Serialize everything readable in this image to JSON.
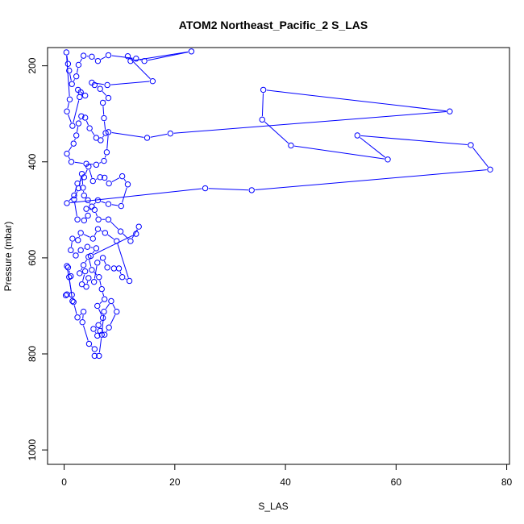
{
  "chart_data": {
    "type": "line",
    "title": "ATOM2 Northeast_Pacific_2 S_LAS",
    "xlabel": "S_LAS",
    "ylabel": "Pressure (mbar)",
    "xlim": [
      -3,
      80.5
    ],
    "ylim": [
      1030,
      162
    ],
    "y_inverted": true,
    "x_ticks": [
      0,
      20,
      40,
      60,
      80
    ],
    "y_ticks": [
      200,
      400,
      600,
      800,
      1000
    ],
    "grid": false,
    "legend": "none",
    "series_color": "#0000ff",
    "marker": "open-circle",
    "points": [
      [
        0.3,
        678
      ],
      [
        0.5,
        676
      ],
      [
        1.4,
        677
      ],
      [
        0.5,
        617
      ],
      [
        0.7,
        620
      ],
      [
        1.2,
        638
      ],
      [
        0.9,
        640
      ],
      [
        1.5,
        690
      ],
      [
        1.7,
        692
      ],
      [
        2.4,
        724
      ],
      [
        3.5,
        712
      ],
      [
        3.3,
        734
      ],
      [
        4.5,
        779
      ],
      [
        5.5,
        790
      ],
      [
        5.5,
        804
      ],
      [
        6.3,
        804
      ],
      [
        6.8,
        760
      ],
      [
        7.2,
        712
      ],
      [
        8.5,
        690
      ],
      [
        9.5,
        712
      ],
      [
        8.1,
        745
      ],
      [
        7.3,
        760
      ],
      [
        6.5,
        752
      ],
      [
        6.0,
        762
      ],
      [
        5.3,
        748
      ],
      [
        6.2,
        740
      ],
      [
        7.0,
        725
      ],
      [
        6.0,
        700
      ],
      [
        7.3,
        686
      ],
      [
        6.8,
        665
      ],
      [
        6.3,
        640
      ],
      [
        5.0,
        625
      ],
      [
        4.4,
        598
      ],
      [
        3.5,
        615
      ],
      [
        2.8,
        632
      ],
      [
        3.8,
        628
      ],
      [
        3.2,
        655
      ],
      [
        4.0,
        660
      ],
      [
        4.4,
        642
      ],
      [
        5.4,
        650
      ],
      [
        6.0,
        610
      ],
      [
        7.0,
        600
      ],
      [
        7.8,
        620
      ],
      [
        9.0,
        622
      ],
      [
        9.9,
        622
      ],
      [
        10.5,
        640
      ],
      [
        11.8,
        648
      ],
      [
        9.5,
        565
      ],
      [
        7.4,
        548
      ],
      [
        6.1,
        540
      ],
      [
        5.2,
        560
      ],
      [
        3.0,
        548
      ],
      [
        2.5,
        563
      ],
      [
        1.5,
        560
      ],
      [
        1.2,
        584
      ],
      [
        2.1,
        595
      ],
      [
        3.0,
        584
      ],
      [
        4.2,
        577
      ],
      [
        5.8,
        580
      ],
      [
        4.8,
        596
      ],
      [
        13.0,
        550
      ],
      [
        13.5,
        535
      ],
      [
        12.0,
        565
      ],
      [
        10.2,
        545
      ],
      [
        8.0,
        520
      ],
      [
        6.2,
        520
      ],
      [
        5.5,
        500
      ],
      [
        4.0,
        498
      ],
      [
        4.3,
        512
      ],
      [
        3.6,
        522
      ],
      [
        2.4,
        520
      ],
      [
        1.8,
        478
      ],
      [
        2.6,
        455
      ],
      [
        3.2,
        425
      ],
      [
        3.4,
        454
      ],
      [
        3.6,
        470
      ],
      [
        4.3,
        480
      ],
      [
        5.0,
        493
      ],
      [
        6.1,
        480
      ],
      [
        8.0,
        488
      ],
      [
        10.3,
        492
      ],
      [
        11.5,
        447
      ],
      [
        10.5,
        430
      ],
      [
        8.1,
        445
      ],
      [
        7.3,
        433
      ],
      [
        6.5,
        432
      ],
      [
        5.2,
        440
      ],
      [
        4.4,
        410
      ],
      [
        3.6,
        432
      ],
      [
        2.4,
        445
      ],
      [
        1.8,
        470
      ],
      [
        0.5,
        486
      ],
      [
        25.5,
        455
      ],
      [
        33.9,
        459
      ],
      [
        77.0,
        416
      ],
      [
        73.5,
        365
      ],
      [
        53.0,
        345
      ],
      [
        58.5,
        395
      ],
      [
        41.0,
        366
      ],
      [
        35.8,
        312
      ],
      [
        36.0,
        250
      ],
      [
        69.7,
        295
      ],
      [
        19.2,
        341
      ],
      [
        15.0,
        350
      ],
      [
        8.0,
        338
      ],
      [
        7.7,
        380
      ],
      [
        7.2,
        398
      ],
      [
        5.8,
        406
      ],
      [
        4.0,
        404
      ],
      [
        1.3,
        400
      ],
      [
        0.5,
        383
      ],
      [
        1.7,
        362
      ],
      [
        2.2,
        345
      ],
      [
        2.6,
        320
      ],
      [
        3.1,
        305
      ],
      [
        3.8,
        308
      ],
      [
        4.6,
        330
      ],
      [
        5.8,
        350
      ],
      [
        6.6,
        355
      ],
      [
        7.5,
        340
      ],
      [
        7.2,
        309
      ],
      [
        7.0,
        277
      ],
      [
        8.0,
        267
      ],
      [
        6.5,
        248
      ],
      [
        5.5,
        240
      ],
      [
        5.0,
        235
      ],
      [
        7.8,
        240
      ],
      [
        16.0,
        232
      ],
      [
        11.5,
        180
      ],
      [
        12.0,
        190
      ],
      [
        23.0,
        170
      ],
      [
        14.5,
        190
      ],
      [
        13.0,
        185
      ],
      [
        8.0,
        178
      ],
      [
        6.1,
        190
      ],
      [
        5.0,
        181
      ],
      [
        3.5,
        179
      ],
      [
        2.6,
        198
      ],
      [
        2.2,
        222
      ],
      [
        1.4,
        238
      ],
      [
        0.9,
        210
      ],
      [
        0.7,
        196
      ],
      [
        0.4,
        172
      ],
      [
        1.0,
        270
      ],
      [
        0.5,
        295
      ],
      [
        1.5,
        325
      ],
      [
        2.8,
        265
      ],
      [
        3.0,
        255
      ],
      [
        3.8,
        262
      ],
      [
        2.5,
        250
      ]
    ]
  }
}
